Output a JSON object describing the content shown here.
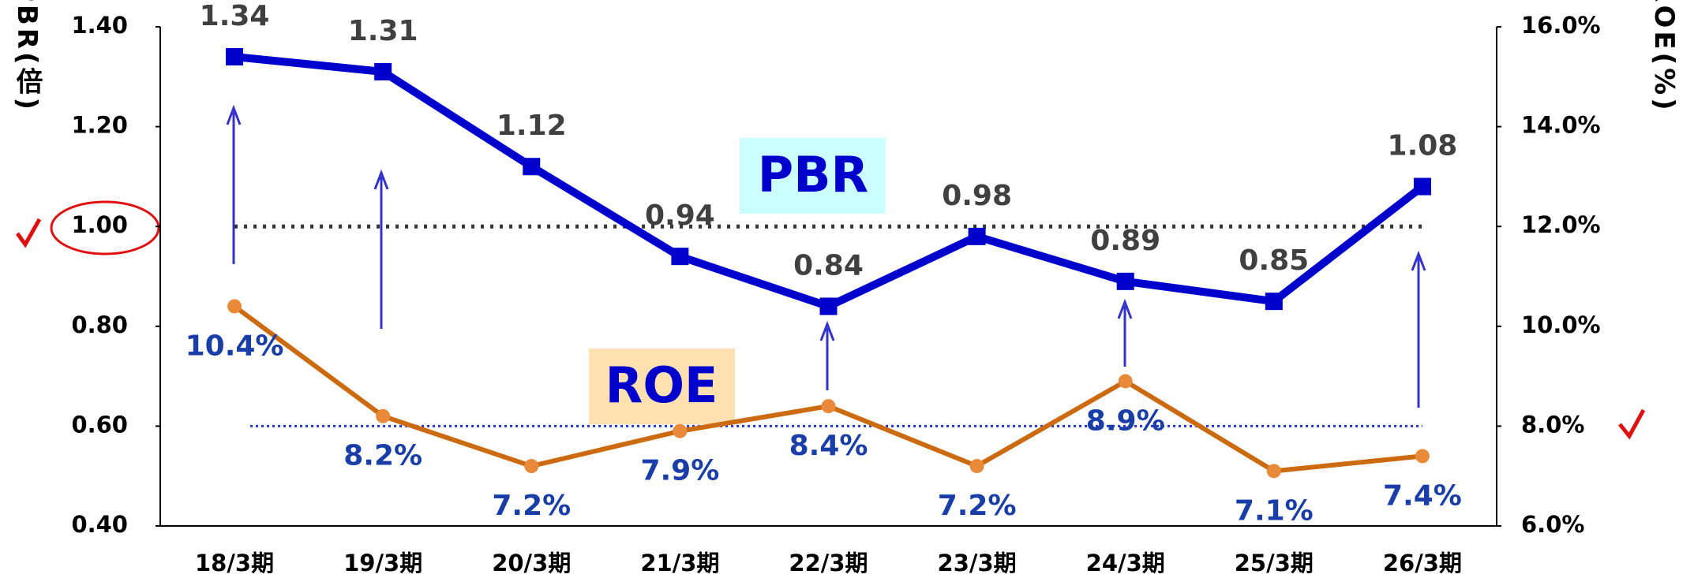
{
  "chart_data": {
    "type": "line",
    "categories": [
      "18/3期",
      "19/3期",
      "20/3期",
      "21/3期",
      "22/3期",
      "23/3期",
      "24/3期",
      "25/3期",
      "26/3期"
    ],
    "series": [
      {
        "name": "PBR",
        "color": "#0000cc",
        "values": [
          1.34,
          1.31,
          1.12,
          0.94,
          0.84,
          0.98,
          0.89,
          0.85,
          1.08
        ]
      },
      {
        "name": "ROE",
        "color": "#cc6a10",
        "axis": "y2",
        "values": [
          10.4,
          8.2,
          7.2,
          7.9,
          8.4,
          7.2,
          8.9,
          7.1,
          7.4
        ],
        "value_labels": [
          "10.4%",
          "8.2%",
          "7.2%",
          "7.9%",
          "8.4%",
          "7.2%",
          "8.9%",
          "7.1%",
          "7.4%"
        ]
      }
    ],
    "ylabel": "PBR(倍)",
    "y2label": "ROE(%)",
    "ylim": [
      0.4,
      1.4
    ],
    "yticks": [
      {
        "value": 0.4,
        "label": "0.40"
      },
      {
        "value": 0.6,
        "label": "0.60"
      },
      {
        "value": 0.8,
        "label": "0.80"
      },
      {
        "value": 1.0,
        "label": "1.00"
      },
      {
        "value": 1.2,
        "label": "1.20"
      },
      {
        "value": 1.4,
        "label": "1.40"
      }
    ],
    "y2lim": [
      6,
      16
    ],
    "y2ticks": [
      {
        "value": 6,
        "label": "6.0%"
      },
      {
        "value": 8,
        "label": "8.0%"
      },
      {
        "value": 10,
        "label": "10.0%"
      },
      {
        "value": 12,
        "label": "12.0%"
      },
      {
        "value": 14,
        "label": "14.0%"
      },
      {
        "value": 16,
        "label": "16.0%"
      }
    ],
    "reference_lines": [
      {
        "axis": "y",
        "value": 1.0,
        "color": "#333333"
      },
      {
        "axis": "y2",
        "value": 8.0,
        "color": "#2233cc"
      }
    ],
    "grid": false
  }
}
